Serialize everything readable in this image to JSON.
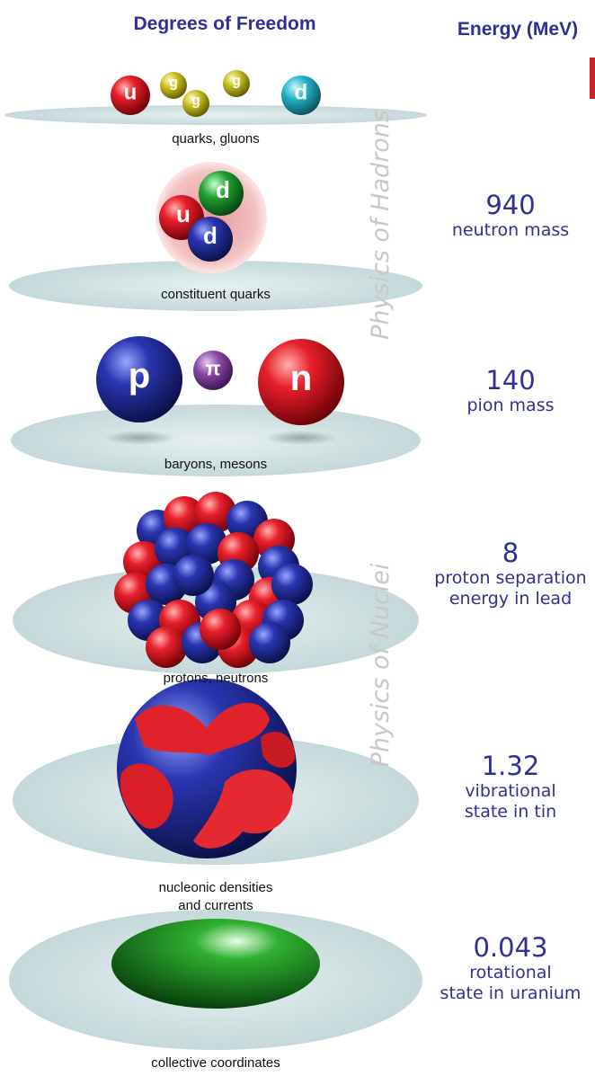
{
  "header": {
    "left": "Degrees of Freedom",
    "right": "Energy (MeV)"
  },
  "side_labels": [
    "Physics of Hadrons",
    "Physics of Nuclei"
  ],
  "levels": [
    {
      "label": [
        "quarks, gluons"
      ],
      "particles": [
        "u",
        "g",
        "g",
        "g",
        "d"
      ]
    },
    {
      "label": [
        "constituent quarks"
      ],
      "particles": [
        "u",
        "d",
        "d"
      ],
      "energy": 940,
      "description": [
        "neutron mass"
      ]
    },
    {
      "label": [
        "baryons, mesons"
      ],
      "particles": [
        "p",
        "π",
        "n"
      ],
      "energy": 140,
      "description": [
        "pion mass"
      ]
    },
    {
      "label": [
        "protons, neutrons"
      ],
      "energy": 8,
      "description": [
        "proton separation",
        "energy in lead"
      ]
    },
    {
      "label": [
        "nucleonic densities",
        "and currents"
      ],
      "energy": 1.32,
      "description": [
        "vibrational",
        "state in tin"
      ]
    },
    {
      "label": [
        "collective coordinates"
      ],
      "energy": 0.043,
      "description": [
        "rotational",
        "state in uranium"
      ]
    }
  ]
}
